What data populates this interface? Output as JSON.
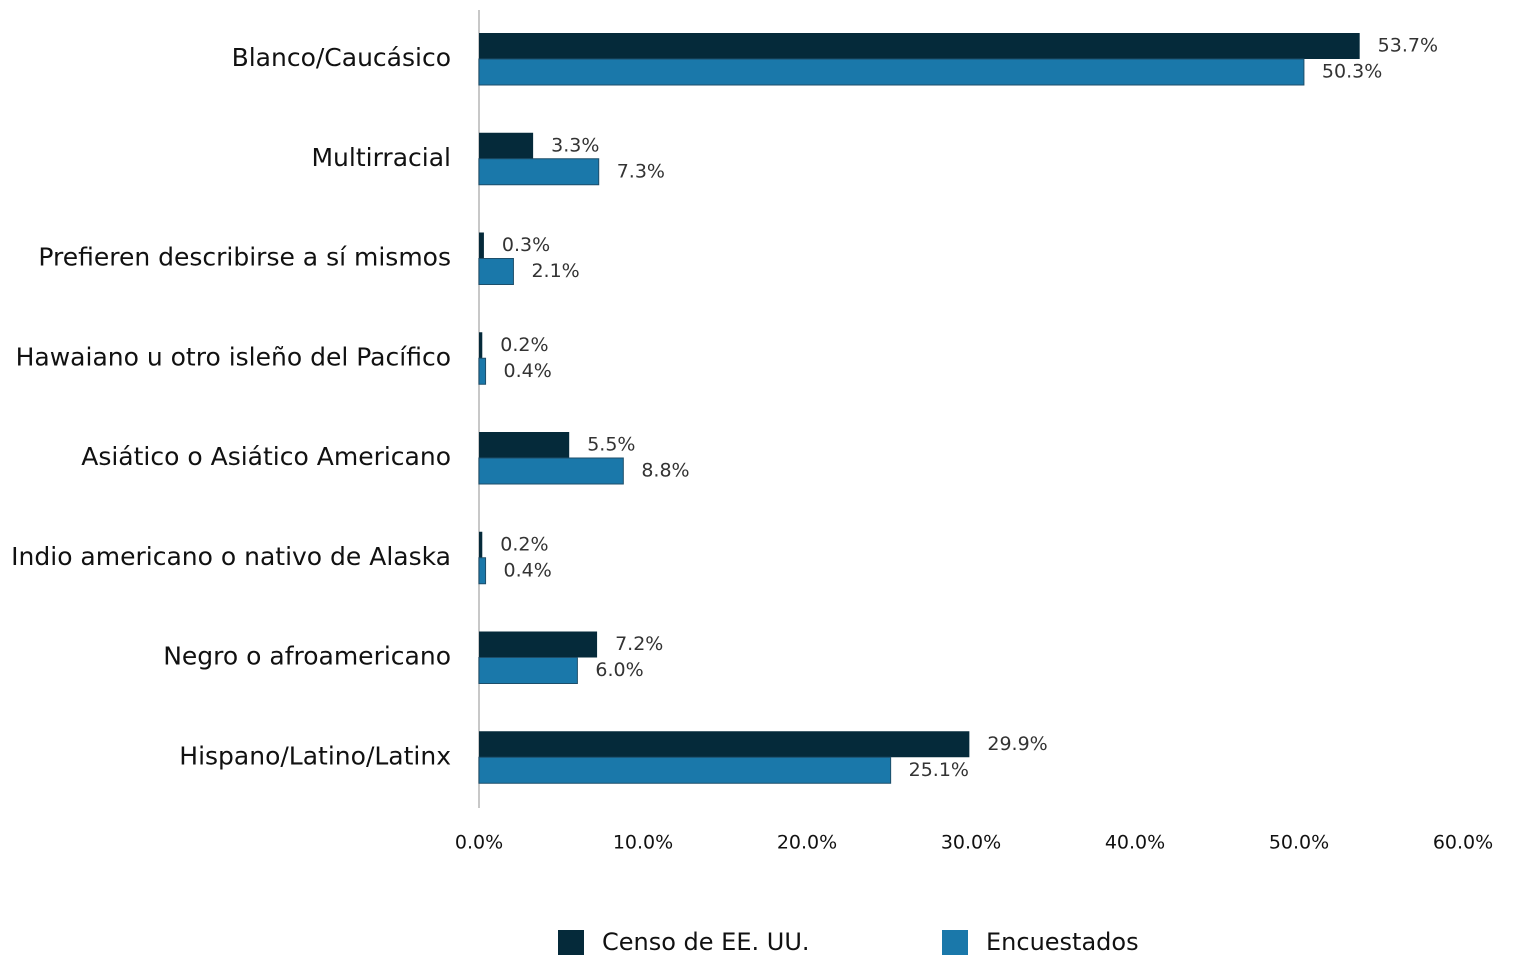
{
  "chart_data": {
    "type": "hbar",
    "categories": [
      "Blanco/Caucásico",
      "Multirracial",
      "Prefieren describirse a sí mismos",
      "Hawaiano u otro isleño del Pacífico",
      "Asiático o Asiático Americano",
      "Indio americano o nativo de Alaska",
      "Negro o afroamericano",
      "Hispano/Latino/Latinx"
    ],
    "series": [
      {
        "name": "Censo de EE. UU.",
        "color": "#052a3a",
        "values": [
          53.7,
          3.3,
          0.3,
          0.2,
          5.5,
          0.2,
          7.2,
          29.9
        ],
        "value_labels": [
          "53.7%",
          "3.3%",
          "0.3%",
          "0.2%",
          "5.5%",
          "0.2%",
          "7.2%",
          "29.9%"
        ]
      },
      {
        "name": "Encuestados",
        "color": "#1a78aa",
        "values": [
          50.3,
          7.3,
          2.1,
          0.4,
          8.8,
          0.4,
          6.0,
          25.1
        ],
        "value_labels": [
          "50.3%",
          "7.3%",
          "2.1%",
          "0.4%",
          "8.8%",
          "0.4%",
          "6.0%",
          "25.1%"
        ]
      }
    ],
    "xlim": [
      0,
      60
    ],
    "xticks": [
      {
        "value": 0,
        "label": "0.0%"
      },
      {
        "value": 10,
        "label": "10.0%"
      },
      {
        "value": 20,
        "label": "20.0%"
      },
      {
        "value": 30,
        "label": "30.0%"
      },
      {
        "value": 40,
        "label": "40.0%"
      },
      {
        "value": 50,
        "label": "50.0%"
      },
      {
        "value": 60,
        "label": "60.0%"
      }
    ],
    "legend": "bottom"
  }
}
